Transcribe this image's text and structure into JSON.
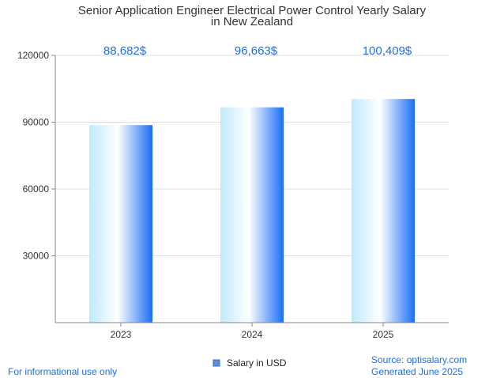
{
  "chart_data": {
    "type": "bar",
    "title_lines": [
      "Senior Application Engineer Electrical Power Control Yearly Salary",
      "in New Zealand"
    ],
    "categories": [
      "2023",
      "2024",
      "2025"
    ],
    "series": [
      {
        "name": "Salary in USD",
        "values": [
          88682,
          96663,
          100409
        ]
      }
    ],
    "data_labels": [
      "88,682$",
      "96,663$",
      "100,409$"
    ],
    "ylim": [
      0,
      120000
    ],
    "y_ticks": [
      30000,
      60000,
      90000,
      120000
    ],
    "grid": true,
    "legend_position": "bottom",
    "colors": {
      "bar_light": "#bfe9ff",
      "bar_mid": "#ffffff",
      "bar_dark": "#1a6ef5",
      "label": "#1f6fe0",
      "grid": "#e0e0e0",
      "axis": "#888888"
    }
  },
  "footer": {
    "left": "For informational use only",
    "source": "Source: optisalary.com",
    "generated": "Generated June 2025"
  }
}
